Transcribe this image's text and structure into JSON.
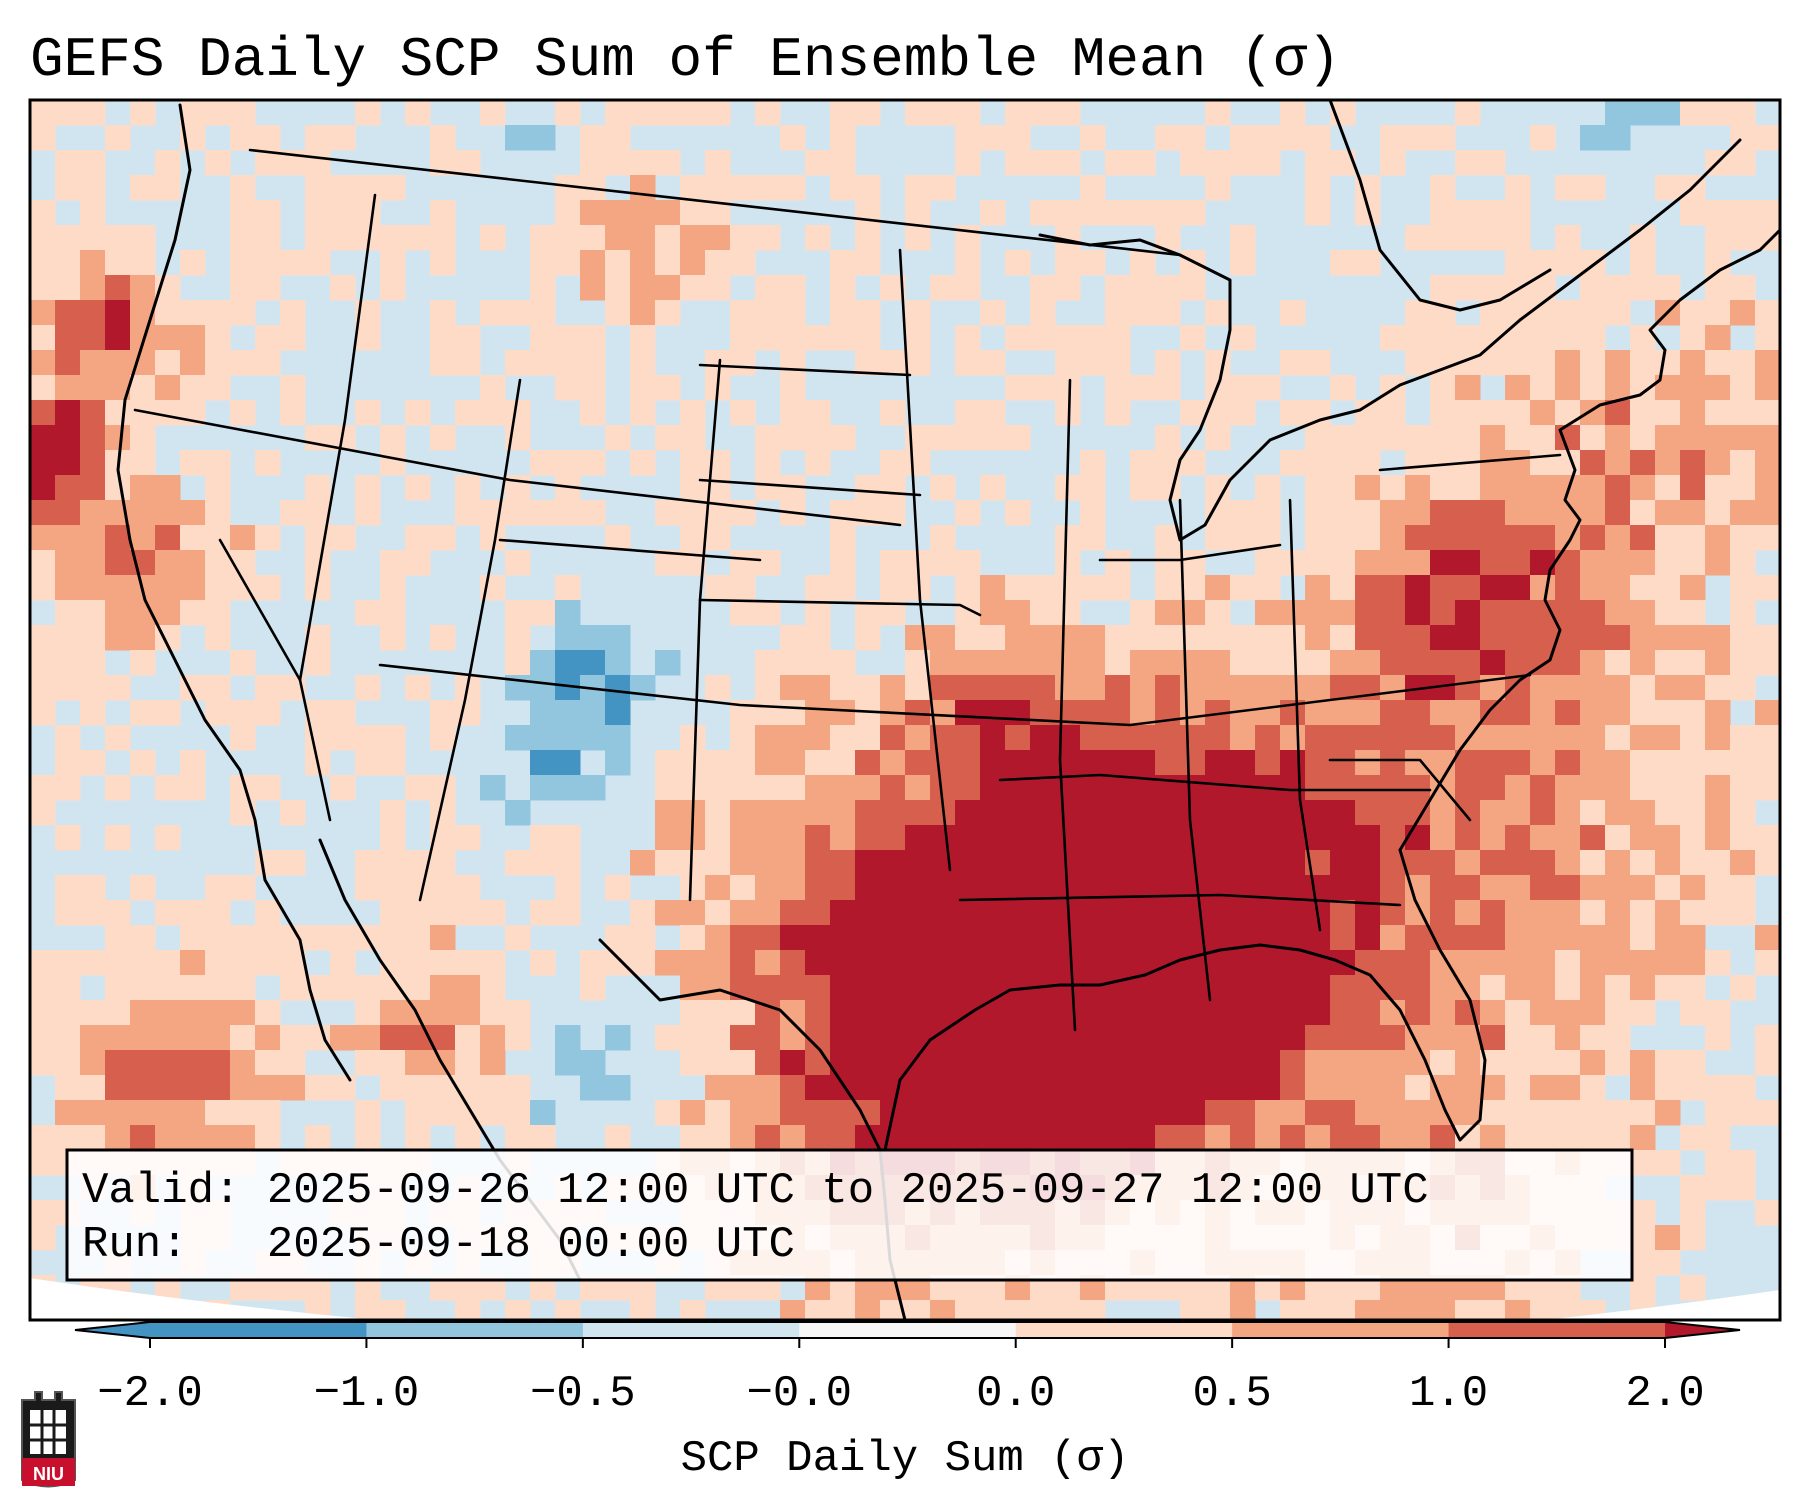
{
  "title": "GEFS Daily SCP Sum of Ensemble Mean (σ)",
  "info_box": {
    "valid_line": "Valid: 2025-09-26 12:00 UTC to 2025-09-27 12:00 UTC",
    "run_line": "Run:   2025-09-18 00:00 UTC"
  },
  "colorbar": {
    "label": "SCP Daily Sum (σ)",
    "ticks": [
      "−2.0",
      "−1.0",
      "−0.5",
      "−0.0",
      "0.0",
      "0.5",
      "1.0",
      "2.0"
    ],
    "colors": [
      "#4393c3",
      "#92c5de",
      "#d1e5f0",
      "#f7f7f7",
      "#fddbc7",
      "#f4a582",
      "#d6604d",
      "#b2182b"
    ]
  },
  "logo": {
    "text": "NIU"
  },
  "map": {
    "projection": "Lambert Conformal Conic",
    "region": "Continental United States"
  },
  "colors": {
    "very_negative": "#4393c3",
    "negative": "#92c5de",
    "slightly_negative": "#d1e5f0",
    "neutral": "#f7f7f7",
    "slightly_positive": "#fddbc7",
    "positive": "#f4a582",
    "strong_positive": "#d6604d",
    "very_strong_positive": "#b2182b"
  }
}
